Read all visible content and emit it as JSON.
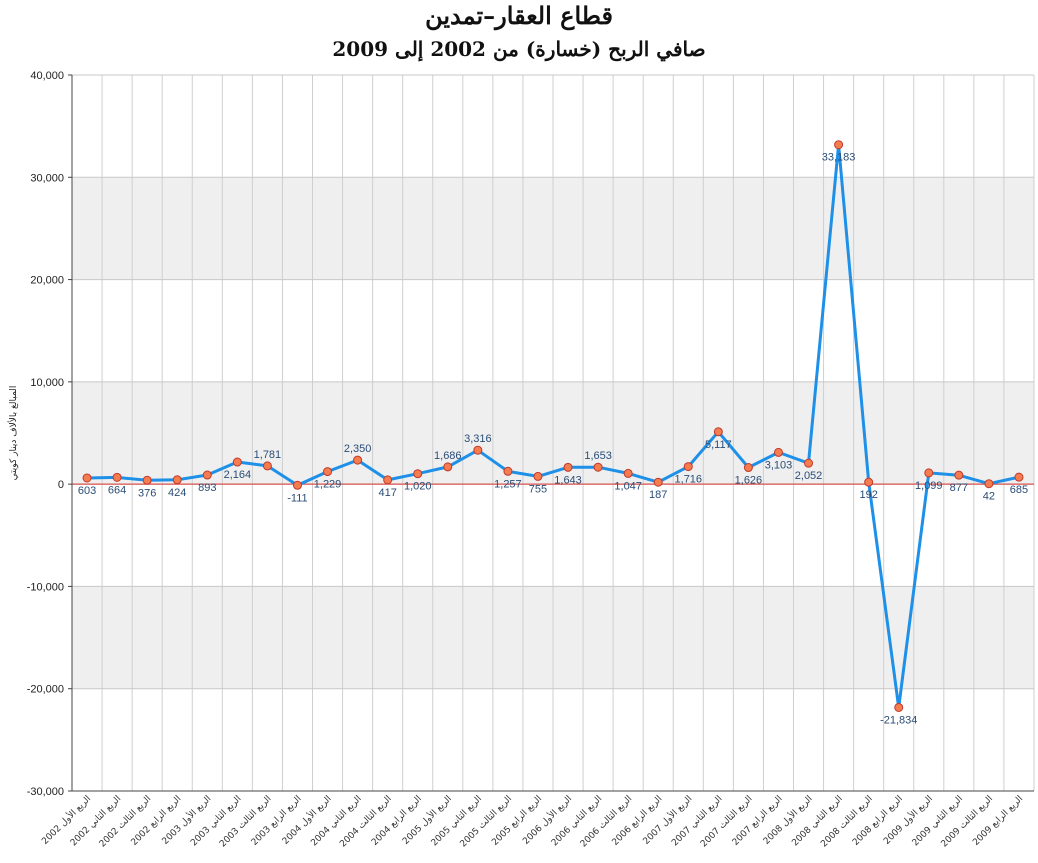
{
  "chart_data": {
    "type": "line",
    "title": "قطاع العقار–تمدين",
    "subtitle": "صافي الربح (خسارة) من 2002 إلى 2009",
    "ylabel": "المبالغ بالألاف دينار كويتي",
    "xlabel": "",
    "ylim": [
      -30000,
      40000
    ],
    "y_ticks": [
      -30000,
      -20000,
      -10000,
      0,
      10000,
      20000,
      30000,
      40000
    ],
    "y_tick_labels": [
      "-30,000",
      "-20,000",
      "-10,000",
      "0",
      "10,000",
      "20,000",
      "30,000",
      "40,000"
    ],
    "grid": true,
    "line_color": "#1e90e8",
    "marker_color": "#f47c4f",
    "zero_line_color": "#d9534f",
    "categories": [
      "الربع الأول 2002",
      "الربع الثاني 2002",
      "الربع الثالث 2002",
      "الربع الرابع 2002",
      "الربع الأول 2003",
      "الربع الثاني 2003",
      "الربع الثالث 2003",
      "الربع الرابع 2003",
      "الربع الأول 2004",
      "الربع الثاني 2004",
      "الربع الثالث 2004",
      "الربع الرابع 2004",
      "الربع الأول 2005",
      "الربع الثاني 2005",
      "الربع الثالث 2005",
      "الربع الرابع 2005",
      "الربع الأول 2006",
      "الربع الثاني 2006",
      "الربع الثالث 2006",
      "الربع الرابع 2006",
      "الربع الأول 2007",
      "الربع الثاني 2007",
      "الربع الثالث 2007",
      "الربع الرابع 2007",
      "الربع الأول 2008",
      "الربع الثاني 2008",
      "الربع الثالث 2008",
      "الربع الرابع 2008",
      "الربع الأول 2009",
      "الربع الثاني 2009",
      "الربع الثالث 2009",
      "الربع الرابع 2009"
    ],
    "values": [
      603,
      664,
      376,
      424,
      893,
      2164,
      1781,
      -111,
      1229,
      2350,
      417,
      1020,
      1686,
      3316,
      1257,
      755,
      1643,
      1653,
      1047,
      187,
      1716,
      5117,
      1626,
      3103,
      2052,
      33183,
      192,
      -21834,
      1099,
      877,
      42,
      685
    ],
    "value_labels": [
      "603",
      "664",
      "376",
      "424",
      "893",
      "2,164",
      "1,781",
      "-111",
      "1,229",
      "2,350",
      "417",
      "1,020",
      "1,686",
      "3,316",
      "1,257",
      "755",
      "1,643",
      "1,653",
      "1,047",
      "187",
      "1,716",
      "5,117",
      "1,626",
      "3,103",
      "2,052",
      "33,183",
      "192",
      "-21,834",
      "1,099",
      "877",
      "42",
      "685"
    ],
    "label_positions": [
      "below",
      "below",
      "below",
      "below",
      "below",
      "below",
      "above",
      "below",
      "below",
      "above",
      "below",
      "below",
      "above",
      "above",
      "below",
      "below",
      "below",
      "above",
      "below",
      "below",
      "below",
      "below",
      "below",
      "below",
      "below",
      "below",
      "below",
      "below",
      "below",
      "below",
      "below",
      "below"
    ]
  }
}
